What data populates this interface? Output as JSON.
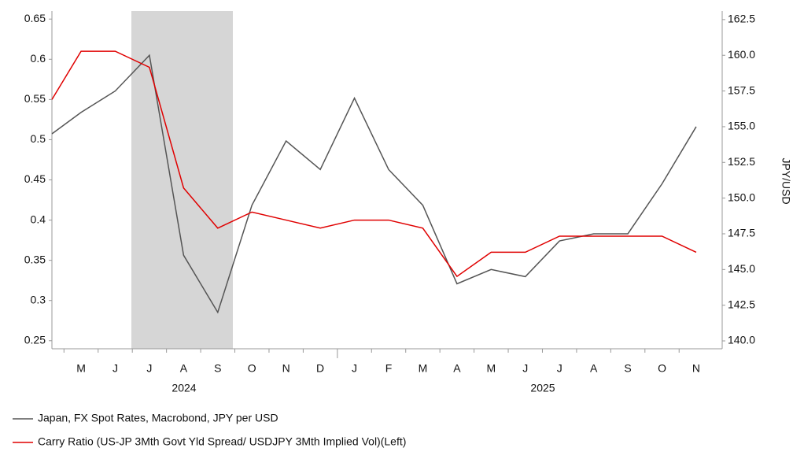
{
  "chart_data": {
    "type": "line",
    "categories": [
      null,
      "M",
      "J",
      "J",
      "A",
      "S",
      "O",
      "N",
      "D",
      "J",
      "F",
      "M",
      "A",
      "M",
      "J",
      "J",
      "A",
      "S",
      "O",
      "N"
    ],
    "years": [
      "2024",
      "2025"
    ],
    "series": [
      {
        "name": "Japan, FX Spot Rates, Macrobond, JPY per USD",
        "color": "#555555",
        "axis": "y2",
        "values": [
          154.5,
          156,
          157.5,
          160,
          146,
          142,
          149.5,
          154,
          152,
          157,
          152,
          149.5,
          144,
          145,
          144.5,
          147,
          147.5,
          147.5,
          151,
          155
        ]
      },
      {
        "name": "Carry Ratio (US-JP 3Mth Govt Yld Spread/ USDJPY 3Mth Implied Vol)(Left)",
        "color": "#e00000",
        "axis": "y",
        "values": [
          0.55,
          0.61,
          0.61,
          0.59,
          0.44,
          0.39,
          0.41,
          0.4,
          0.39,
          0.4,
          0.4,
          0.39,
          0.33,
          0.36,
          0.36,
          0.38,
          0.38,
          0.38,
          0.38,
          0.36
        ]
      }
    ],
    "ylim": [
      0.24,
      0.66
    ],
    "yticks": [
      0.25,
      0.3,
      0.35,
      0.4,
      0.45,
      0.5,
      0.55,
      0.6,
      0.65
    ],
    "y2lim": [
      139.45,
      163.1
    ],
    "y2ticks": [
      {
        "value": 140,
        "label": "140.0"
      },
      {
        "value": 142.5,
        "label": "142.5"
      },
      {
        "value": 145,
        "label": "145.0"
      },
      {
        "value": 147.5,
        "label": "147.5"
      },
      {
        "value": 150,
        "label": "150.0"
      },
      {
        "value": 152.5,
        "label": "152.5"
      },
      {
        "value": 155,
        "label": "155.0"
      },
      {
        "value": 157.5,
        "label": "157.5"
      },
      {
        "value": 160,
        "label": "160.0"
      },
      {
        "value": 162.5,
        "label": "162.5"
      }
    ],
    "y2label": "JPY/USD"
  }
}
